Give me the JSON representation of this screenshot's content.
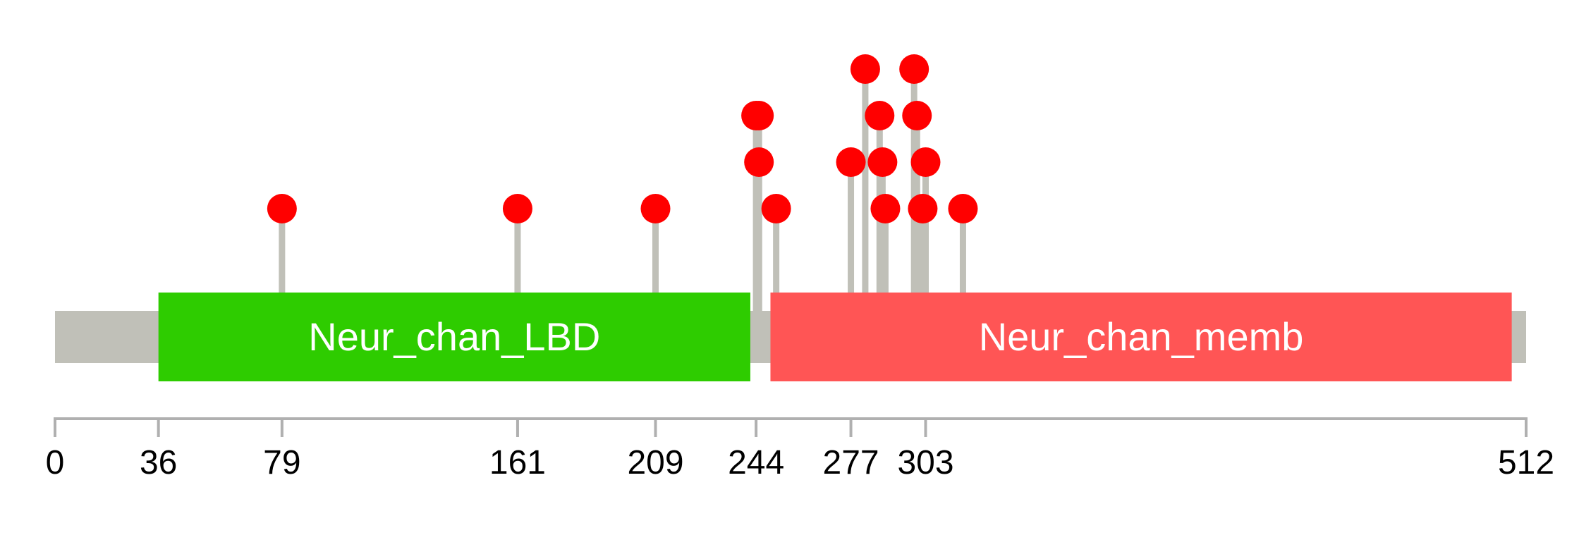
{
  "chart_data": {
    "type": "lollipop",
    "protein_length": 512,
    "axis_ticks": [
      0,
      36,
      79,
      161,
      209,
      244,
      277,
      303,
      512
    ],
    "domains": [
      {
        "name": "Neur_chan_LBD",
        "start": 36,
        "end": 242,
        "color": "#2ecc00"
      },
      {
        "name": "Neur_chan_memb",
        "start": 249,
        "end": 507,
        "color": "#ff5555"
      }
    ],
    "mutations": [
      {
        "position": 79,
        "count": 1
      },
      {
        "position": 161,
        "count": 1
      },
      {
        "position": 209,
        "count": 1
      },
      {
        "position": 244,
        "count": 3
      },
      {
        "position": 245,
        "count": 2
      },
      {
        "position": 245,
        "count": 3
      },
      {
        "position": 251,
        "count": 1
      },
      {
        "position": 277,
        "count": 2
      },
      {
        "position": 282,
        "count": 4
      },
      {
        "position": 287,
        "count": 3
      },
      {
        "position": 288,
        "count": 2
      },
      {
        "position": 289,
        "count": 1
      },
      {
        "position": 299,
        "count": 4
      },
      {
        "position": 300,
        "count": 3
      },
      {
        "position": 302,
        "count": 1
      },
      {
        "position": 303,
        "count": 2
      },
      {
        "position": 316,
        "count": 1
      }
    ],
    "colors": {
      "backbone": "#c0c0b8",
      "stem": "#c0c0b8",
      "marker": "#ff0000",
      "axis": "#b0b0b0"
    }
  }
}
